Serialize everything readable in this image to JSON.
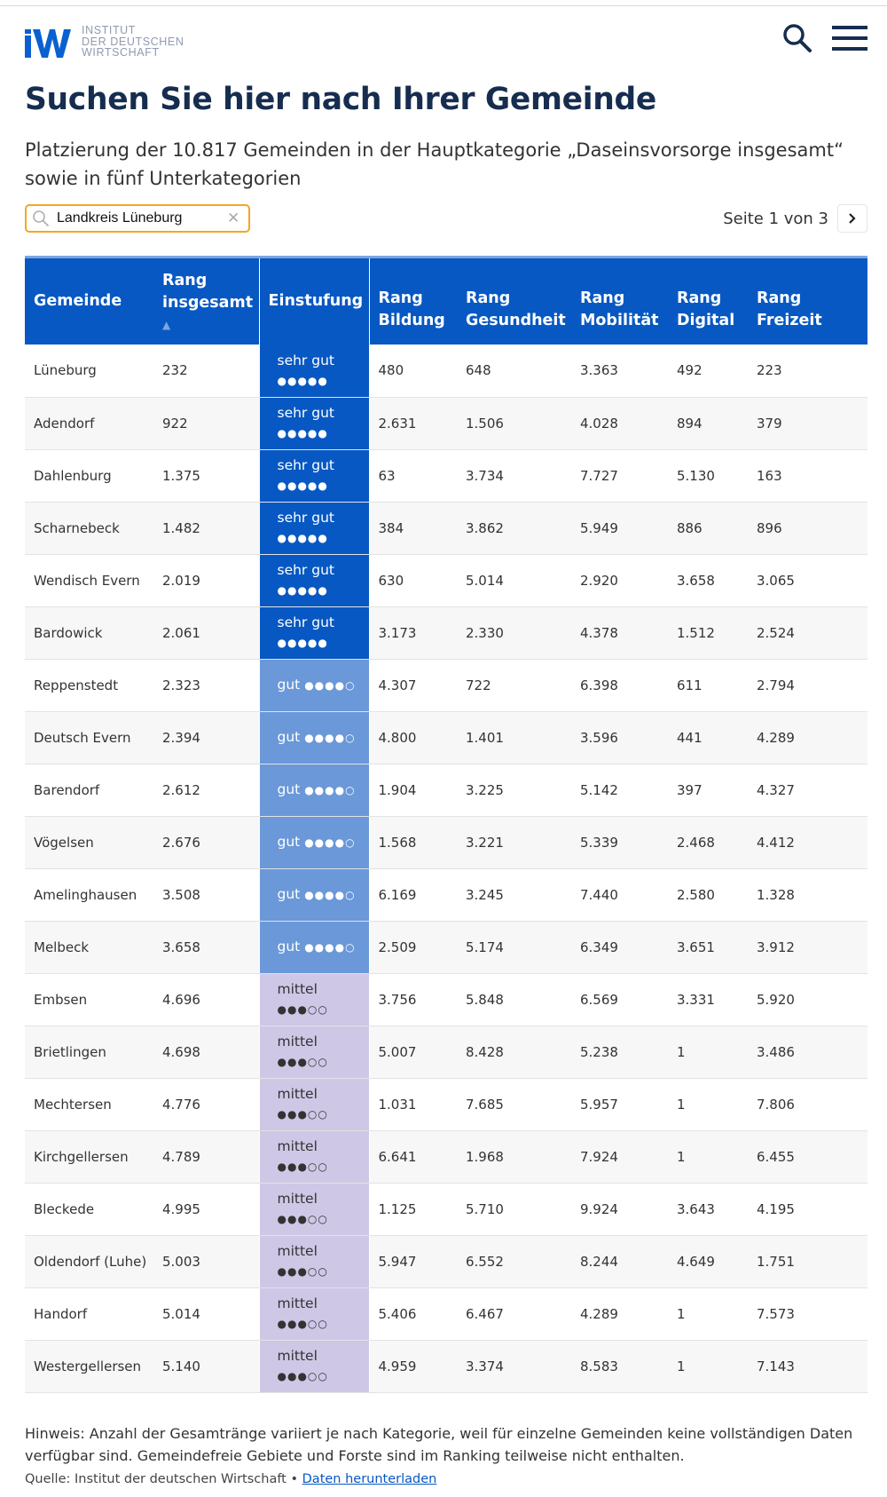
{
  "header": {
    "logo_lines": [
      "INSTITUT",
      "DER DEUTSCHEN",
      "WIRTSCHAFT"
    ],
    "logo_mark": "IW"
  },
  "title": "Suchen Sie hier nach Ihrer Gemeinde",
  "subtitle": "Platzierung der 10.817 Gemeinden in der Hauptkategorie „Daseinsvorsorge insgesamt“ sowie in fünf Unterkategorien",
  "search": {
    "value": "Landkreis Lüneburg",
    "clear_icon": "close-icon"
  },
  "pager": {
    "label": "Seite 1 von 3"
  },
  "table": {
    "headers": [
      {
        "line1": "Gemeinde",
        "line2": ""
      },
      {
        "line1": "Rang",
        "line2": "insgesamt"
      },
      {
        "line1": "Einstufung",
        "line2": ""
      },
      {
        "line1": "Rang",
        "line2": "Bildung"
      },
      {
        "line1": "Rang",
        "line2": "Gesundheit"
      },
      {
        "line1": "Rang",
        "line2": "Mobilität"
      },
      {
        "line1": "Rang",
        "line2": "Digital"
      },
      {
        "line1": "Rang",
        "line2": "Freizeit"
      }
    ],
    "sort_arrow": "▲",
    "rows": [
      {
        "name": "Lüneburg",
        "total": "232",
        "rating_label": "sehr gut",
        "dots": "●●●●●",
        "level": "sehr",
        "bildung": "480",
        "gesundheit": "648",
        "mobilitaet": "3.363",
        "digital": "492",
        "freizeit": "223"
      },
      {
        "name": "Adendorf",
        "total": "922",
        "rating_label": "sehr gut",
        "dots": "●●●●●",
        "level": "sehr",
        "bildung": "2.631",
        "gesundheit": "1.506",
        "mobilitaet": "4.028",
        "digital": "894",
        "freizeit": "379"
      },
      {
        "name": "Dahlenburg",
        "total": "1.375",
        "rating_label": "sehr gut",
        "dots": "●●●●●",
        "level": "sehr",
        "bildung": "63",
        "gesundheit": "3.734",
        "mobilitaet": "7.727",
        "digital": "5.130",
        "freizeit": "163"
      },
      {
        "name": "Scharnebeck",
        "total": "1.482",
        "rating_label": "sehr gut",
        "dots": "●●●●●",
        "level": "sehr",
        "bildung": "384",
        "gesundheit": "3.862",
        "mobilitaet": "5.949",
        "digital": "886",
        "freizeit": "896"
      },
      {
        "name": "Wendisch Evern",
        "total": "2.019",
        "rating_label": "sehr gut",
        "dots": "●●●●●",
        "level": "sehr",
        "bildung": "630",
        "gesundheit": "5.014",
        "mobilitaet": "2.920",
        "digital": "3.658",
        "freizeit": "3.065"
      },
      {
        "name": "Bardowick",
        "total": "2.061",
        "rating_label": "sehr gut",
        "dots": "●●●●●",
        "level": "sehr",
        "bildung": "3.173",
        "gesundheit": "2.330",
        "mobilitaet": "4.378",
        "digital": "1.512",
        "freizeit": "2.524"
      },
      {
        "name": "Reppenstedt",
        "total": "2.323",
        "rating_label": "gut",
        "dots": "●●●●○",
        "level": "gut",
        "bildung": "4.307",
        "gesundheit": "722",
        "mobilitaet": "6.398",
        "digital": "611",
        "freizeit": "2.794"
      },
      {
        "name": "Deutsch Evern",
        "total": "2.394",
        "rating_label": "gut",
        "dots": "●●●●○",
        "level": "gut",
        "bildung": "4.800",
        "gesundheit": "1.401",
        "mobilitaet": "3.596",
        "digital": "441",
        "freizeit": "4.289"
      },
      {
        "name": "Barendorf",
        "total": "2.612",
        "rating_label": "gut",
        "dots": "●●●●○",
        "level": "gut",
        "bildung": "1.904",
        "gesundheit": "3.225",
        "mobilitaet": "5.142",
        "digital": "397",
        "freizeit": "4.327"
      },
      {
        "name": "Vögelsen",
        "total": "2.676",
        "rating_label": "gut",
        "dots": "●●●●○",
        "level": "gut",
        "bildung": "1.568",
        "gesundheit": "3.221",
        "mobilitaet": "5.339",
        "digital": "2.468",
        "freizeit": "4.412"
      },
      {
        "name": "Amelinghausen",
        "total": "3.508",
        "rating_label": "gut",
        "dots": "●●●●○",
        "level": "gut",
        "bildung": "6.169",
        "gesundheit": "3.245",
        "mobilitaet": "7.440",
        "digital": "2.580",
        "freizeit": "1.328"
      },
      {
        "name": "Melbeck",
        "total": "3.658",
        "rating_label": "gut",
        "dots": "●●●●○",
        "level": "gut",
        "bildung": "2.509",
        "gesundheit": "5.174",
        "mobilitaet": "6.349",
        "digital": "3.651",
        "freizeit": "3.912"
      },
      {
        "name": "Embsen",
        "total": "4.696",
        "rating_label": "mittel",
        "dots": "●●●○○",
        "level": "mittel",
        "bildung": "3.756",
        "gesundheit": "5.848",
        "mobilitaet": "6.569",
        "digital": "3.331",
        "freizeit": "5.920"
      },
      {
        "name": "Brietlingen",
        "total": "4.698",
        "rating_label": "mittel",
        "dots": "●●●○○",
        "level": "mittel",
        "bildung": "5.007",
        "gesundheit": "8.428",
        "mobilitaet": "5.238",
        "digital": "1",
        "freizeit": "3.486"
      },
      {
        "name": "Mechtersen",
        "total": "4.776",
        "rating_label": "mittel",
        "dots": "●●●○○",
        "level": "mittel",
        "bildung": "1.031",
        "gesundheit": "7.685",
        "mobilitaet": "5.957",
        "digital": "1",
        "freizeit": "7.806"
      },
      {
        "name": "Kirchgellersen",
        "total": "4.789",
        "rating_label": "mittel",
        "dots": "●●●○○",
        "level": "mittel",
        "bildung": "6.641",
        "gesundheit": "1.968",
        "mobilitaet": "7.924",
        "digital": "1",
        "freizeit": "6.455"
      },
      {
        "name": "Bleckede",
        "total": "4.995",
        "rating_label": "mittel",
        "dots": "●●●○○",
        "level": "mittel",
        "bildung": "1.125",
        "gesundheit": "5.710",
        "mobilitaet": "9.924",
        "digital": "3.643",
        "freizeit": "4.195"
      },
      {
        "name": "Oldendorf (Luhe)",
        "total": "5.003",
        "rating_label": "mittel",
        "dots": "●●●○○",
        "level": "mittel",
        "bildung": "5.947",
        "gesundheit": "6.552",
        "mobilitaet": "8.244",
        "digital": "4.649",
        "freizeit": "1.751"
      },
      {
        "name": "Handorf",
        "total": "5.014",
        "rating_label": "mittel",
        "dots": "●●●○○",
        "level": "mittel",
        "bildung": "5.406",
        "gesundheit": "6.467",
        "mobilitaet": "4.289",
        "digital": "1",
        "freizeit": "7.573"
      },
      {
        "name": "Westergellersen",
        "total": "5.140",
        "rating_label": "mittel",
        "dots": "●●●○○",
        "level": "mittel",
        "bildung": "4.959",
        "gesundheit": "3.374",
        "mobilitaet": "8.583",
        "digital": "1",
        "freizeit": "7.143"
      }
    ]
  },
  "footer": {
    "note": "Hinweis: Anzahl der Gesamtränge variiert je nach Kategorie, weil für einzelne Gemeinden keine vollständigen Daten verfügbar sind. Gemeindefreie Gebiete und Forste sind im Ranking teilweise nicht enthalten.",
    "source_label": "Quelle: Institut der deutschen Wirtschaft •",
    "download_link": "Daten herunterladen"
  },
  "colors": {
    "brand_blue": "#0758c3",
    "title_navy": "#162d4f",
    "rating_sehr_gut": "#0758c3",
    "rating_gut": "#6a98d8",
    "rating_mittel": "#cfc7e6",
    "search_border": "#f5a623"
  },
  "icons": {
    "search": "search-icon",
    "menu": "hamburger-menu-icon",
    "next": "chevron-right-icon"
  }
}
